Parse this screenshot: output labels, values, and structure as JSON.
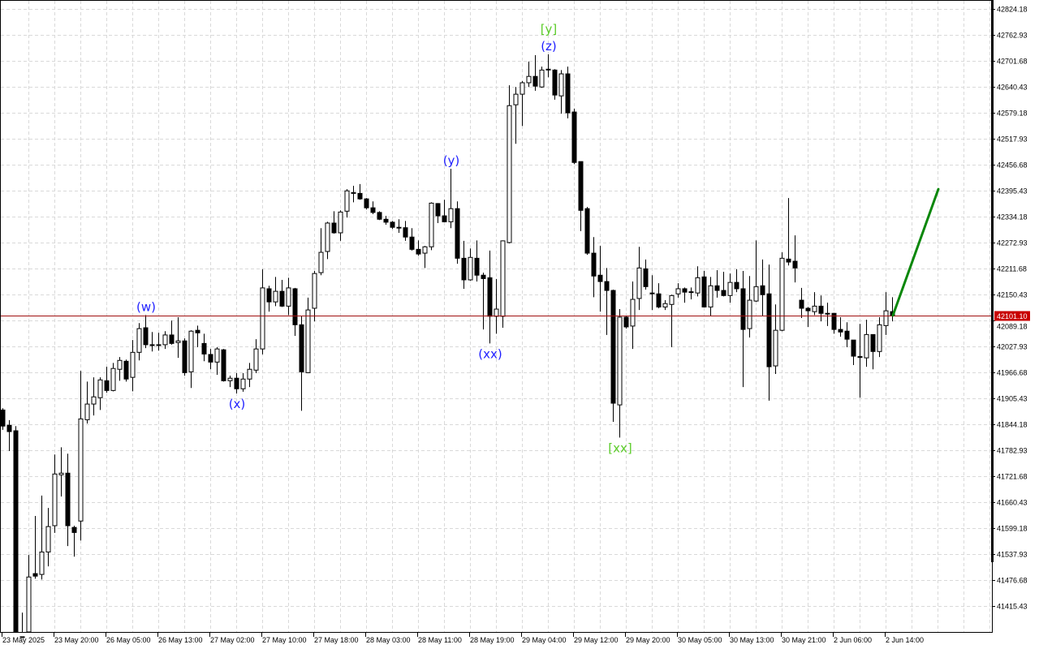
{
  "chart_data": {
    "type": "candlestick",
    "title": "",
    "xlabel": "",
    "ylabel": "",
    "ylim": [
      41378.68,
      42845.23
    ],
    "grid": true,
    "grid_style": "dashed",
    "y_ticks": [
      "42824.18",
      "42762.93",
      "42701.68",
      "42640.43",
      "42579.18",
      "42517.93",
      "42456.68",
      "42395.43",
      "42334.18",
      "42272.93",
      "42211.68",
      "42150.43",
      "42089.18",
      "42027.93",
      "41966.68",
      "41905.43",
      "41844.18",
      "41782.93",
      "41721.68",
      "41660.43",
      "41599.18",
      "41537.93",
      "41476.68",
      "41415.43"
    ],
    "x_ticks": [
      "23 May 2025",
      "23 May 20:00",
      "26 May 05:00",
      "26 May 13:00",
      "27 May 02:00",
      "27 May 10:00",
      "27 May 18:00",
      "28 May 03:00",
      "28 May 11:00",
      "28 May 19:00",
      "29 May 04:00",
      "29 May 12:00",
      "29 May 20:00",
      "30 May 05:00",
      "30 May 13:00",
      "30 May 21:00",
      "2 Jun 06:00",
      "2 Jun 14:00"
    ],
    "current_price": "42101.10",
    "candle_fields": [
      "open",
      "high",
      "low",
      "close"
    ],
    "candles": [
      [
        41878,
        41882,
        41831,
        41840
      ],
      [
        41842,
        41854,
        41781,
        41827
      ],
      [
        41829,
        41840,
        41343,
        41352
      ],
      [
        41333,
        41400,
        41323,
        41343
      ],
      [
        41352,
        41536,
        41333,
        41484
      ],
      [
        41492,
        41628,
        41480,
        41486
      ],
      [
        41490,
        41676,
        41478,
        41543
      ],
      [
        41543,
        41647,
        41509,
        41603
      ],
      [
        41605,
        41773,
        41588,
        41727
      ],
      [
        41725,
        41790,
        41674,
        41729
      ],
      [
        41729,
        41775,
        41557,
        41605
      ],
      [
        41601,
        41605,
        41532,
        41589
      ],
      [
        41616,
        41970,
        41570,
        41857
      ],
      [
        41855,
        41945,
        41846,
        41892
      ],
      [
        41892,
        41955,
        41865,
        41909
      ],
      [
        41907,
        41955,
        41878,
        41949
      ],
      [
        41947,
        41980,
        41919,
        41924
      ],
      [
        41924,
        41989,
        41922,
        41976
      ],
      [
        41974,
        42003,
        41947,
        41995
      ],
      [
        41993,
        41997,
        41945,
        41951
      ],
      [
        41955,
        42043,
        41922,
        42014
      ],
      [
        42014,
        42083,
        41995,
        42070
      ],
      [
        42072,
        42102,
        42024,
        42032
      ],
      [
        42032,
        42062,
        42016,
        42030
      ],
      [
        42032,
        42060,
        42018,
        42031
      ],
      [
        42032,
        42064,
        42022,
        42055
      ],
      [
        42055,
        42089,
        42032,
        42035
      ],
      [
        42037,
        42097,
        42001,
        42041
      ],
      [
        42041,
        42047,
        41959,
        41966
      ],
      [
        41968,
        42066,
        41930,
        42064
      ],
      [
        42066,
        42077,
        42026,
        42060
      ],
      [
        42035,
        42058,
        41993,
        42010
      ],
      [
        42009,
        42022,
        41974,
        41991
      ],
      [
        41991,
        42026,
        41961,
        42022
      ],
      [
        42020,
        42022,
        41945,
        41947
      ],
      [
        41947,
        41959,
        41932,
        41953
      ],
      [
        41953,
        41965,
        41917,
        41928
      ],
      [
        41928,
        41965,
        41921,
        41951
      ],
      [
        41951,
        41989,
        41932,
        41974
      ],
      [
        41972,
        42045,
        41965,
        42022
      ],
      [
        42022,
        42210,
        42009,
        42166
      ],
      [
        42164,
        42171,
        42110,
        42133
      ],
      [
        42133,
        42192,
        42123,
        42158
      ],
      [
        42158,
        42185,
        42121,
        42123
      ],
      [
        42123,
        42190,
        42102,
        42166
      ],
      [
        42164,
        42166,
        42053,
        42079
      ],
      [
        42079,
        42100,
        41876,
        41968
      ],
      [
        41966,
        42143,
        41965,
        42114
      ],
      [
        42118,
        42206,
        42087,
        42200
      ],
      [
        42202,
        42307,
        42196,
        42250
      ],
      [
        42252,
        42322,
        42234,
        42319
      ],
      [
        42319,
        42347,
        42294,
        42296
      ],
      [
        42296,
        42349,
        42277,
        42345
      ],
      [
        42347,
        42399,
        42332,
        42395
      ],
      [
        42389,
        42407,
        42368,
        42391
      ],
      [
        42389,
        42411,
        42374,
        42376
      ],
      [
        42376,
        42378,
        42351,
        42355
      ],
      [
        42355,
        42370,
        42340,
        42344
      ],
      [
        42344,
        42347,
        42326,
        42328
      ],
      [
        42328,
        42336,
        42315,
        42321
      ],
      [
        42321,
        42324,
        42305,
        42309
      ],
      [
        42309,
        42328,
        42296,
        42308
      ],
      [
        42308,
        42324,
        42277,
        42286
      ],
      [
        42286,
        42307,
        42254,
        42257
      ],
      [
        42257,
        42278,
        42242,
        42246
      ],
      [
        42248,
        42265,
        42213,
        42263
      ],
      [
        42263,
        42368,
        42255,
        42366
      ],
      [
        42365,
        42366,
        42319,
        42336
      ],
      [
        42336,
        42374,
        42321,
        42322
      ],
      [
        42322,
        42447,
        42307,
        42353
      ],
      [
        42353,
        42370,
        42223,
        42236
      ],
      [
        42236,
        42277,
        42164,
        42185
      ],
      [
        42185,
        42259,
        42183,
        42238
      ],
      [
        42236,
        42278,
        42181,
        42196
      ],
      [
        42196,
        42202,
        42068,
        42188
      ],
      [
        42190,
        42254,
        42035,
        42099
      ],
      [
        42099,
        42187,
        42058,
        42116
      ],
      [
        42099,
        42278,
        42072,
        42277
      ],
      [
        42273,
        42644,
        42271,
        42596
      ],
      [
        42598,
        42640,
        42506,
        42623
      ],
      [
        42623,
        42654,
        42548,
        42650
      ],
      [
        42650,
        42700,
        42640,
        42665
      ],
      [
        42665,
        42715,
        42631,
        42642
      ],
      [
        42640,
        42688,
        42638,
        42680
      ],
      [
        42682,
        42717,
        42663,
        42681
      ],
      [
        42680,
        42682,
        42610,
        42621
      ],
      [
        42619,
        42680,
        42577,
        42671
      ],
      [
        42671,
        42688,
        42566,
        42579
      ],
      [
        42581,
        42589,
        42458,
        42462
      ],
      [
        42464,
        42464,
        42300,
        42349
      ],
      [
        42353,
        42357,
        42244,
        42248
      ],
      [
        42248,
        42286,
        42144,
        42194
      ],
      [
        42196,
        42265,
        42110,
        42181
      ],
      [
        42181,
        42213,
        42055,
        42160
      ],
      [
        42160,
        42162,
        41850,
        41894
      ],
      [
        41890,
        42116,
        41813,
        42097
      ],
      [
        42097,
        42099,
        42070,
        42074
      ],
      [
        42076,
        42181,
        42022,
        42139
      ],
      [
        42141,
        42263,
        42114,
        42213
      ],
      [
        42211,
        42233,
        42162,
        42169
      ],
      [
        42154,
        42196,
        42114,
        42153
      ],
      [
        42152,
        42177,
        42118,
        42121
      ],
      [
        42121,
        42137,
        42114,
        42129
      ],
      [
        42127,
        42150,
        42026,
        42148
      ],
      [
        42152,
        42177,
        42143,
        42164
      ],
      [
        42164,
        42167,
        42131,
        42156
      ],
      [
        42156,
        42167,
        42139,
        42157
      ],
      [
        42154,
        42217,
        42146,
        42190
      ],
      [
        42192,
        42206,
        42120,
        42121
      ],
      [
        42121,
        42192,
        42099,
        42171
      ],
      [
        42171,
        42208,
        42143,
        42160
      ],
      [
        42160,
        42204,
        42146,
        42148
      ],
      [
        42148,
        42200,
        42131,
        42179
      ],
      [
        42179,
        42210,
        42156,
        42164
      ],
      [
        42164,
        42206,
        41932,
        42068
      ],
      [
        42070,
        42194,
        42049,
        42137
      ],
      [
        42135,
        42278,
        42133,
        42169
      ],
      [
        42171,
        42233,
        42100,
        42150
      ],
      [
        42152,
        42221,
        41900,
        41980
      ],
      [
        41982,
        42127,
        41963,
        42066
      ],
      [
        42066,
        42250,
        42064,
        42236
      ],
      [
        42234,
        42378,
        42219,
        42227
      ],
      [
        42229,
        42290,
        42179,
        42213
      ],
      [
        42137,
        42166,
        42095,
        42118
      ],
      [
        42118,
        42121,
        42074,
        42112
      ],
      [
        42110,
        42156,
        42102,
        42123
      ],
      [
        42123,
        42148,
        42087,
        42106
      ],
      [
        42106,
        42131,
        42076,
        42105
      ],
      [
        42106,
        42107,
        42058,
        42068
      ],
      [
        42068,
        42097,
        42051,
        42062
      ],
      [
        42064,
        42085,
        42026,
        42045
      ],
      [
        42043,
        42043,
        41984,
        42005
      ],
      [
        42003,
        42081,
        41907,
        42004
      ],
      [
        42001,
        42091,
        41980,
        42056
      ],
      [
        42056,
        42056,
        41974,
        42016
      ],
      [
        42016,
        42097,
        42003,
        42079
      ],
      [
        42077,
        42156,
        42055,
        42112
      ],
      [
        42110,
        42144,
        42087,
        42101.1
      ]
    ],
    "annotations": [
      {
        "text": "(w)",
        "candle": 22,
        "anchor": "high",
        "color": "#1f1fff"
      },
      {
        "text": "(x)",
        "candle": 36,
        "anchor": "low",
        "color": "#1f1fff"
      },
      {
        "text": "(y)",
        "candle": 69,
        "anchor": "high",
        "color": "#1f1fff"
      },
      {
        "text": "(xx)",
        "candle": 75,
        "anchor": "low",
        "color": "#1f1fff"
      },
      {
        "text": "(z)",
        "candle": 84,
        "anchor": "high",
        "color": "#1f1fff"
      },
      {
        "text": "[y]",
        "candle": 84,
        "anchor": "high2",
        "color": "#5ccc2a"
      },
      {
        "text": "[xx]",
        "candle": 95,
        "anchor": "low",
        "color": "#5ccc2a"
      }
    ],
    "projection": {
      "from_price": 42101.1,
      "to_price": 42399,
      "bars_ahead": 7,
      "color": "#0a870a"
    },
    "colors": {
      "bull_body": "#ffffff",
      "bear_body": "#000000",
      "outline": "#000000",
      "grid": "#d9d9d9",
      "price_line": "#a01010",
      "price_tag": "#c80000"
    }
  }
}
